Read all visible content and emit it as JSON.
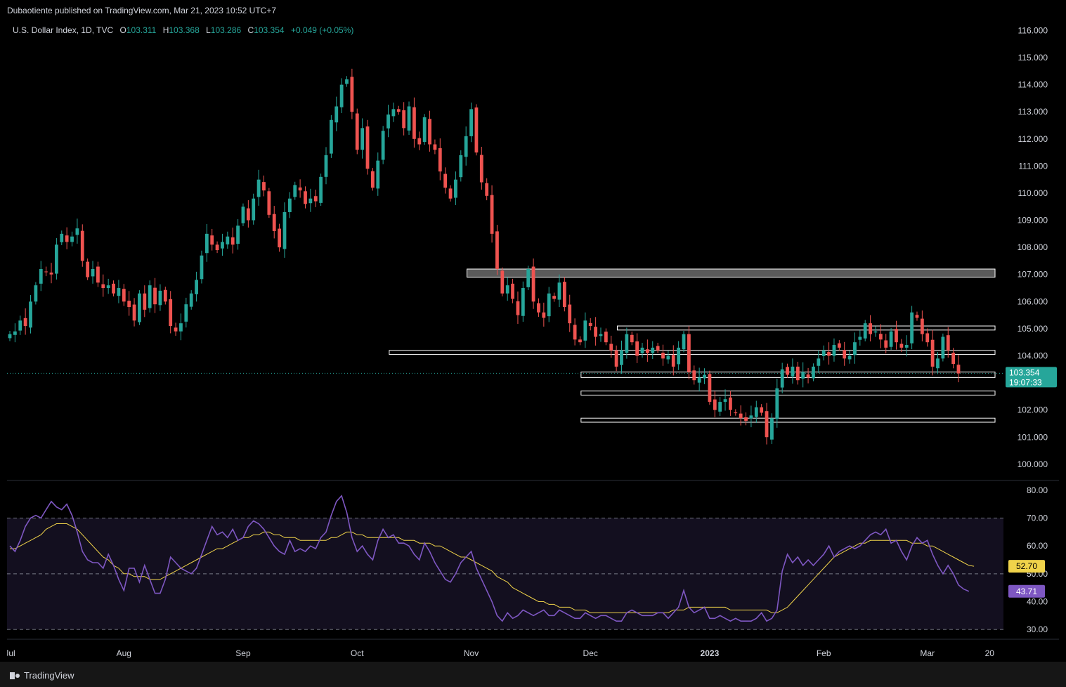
{
  "header": {
    "published": "Dubaotiente published on TradingView.com, Mar 21, 2023 10:52 UTC+7"
  },
  "legend": {
    "symbol": "U.S. Dollar Index, 1D, TVC",
    "o_label": "O",
    "o": "103.311",
    "h_label": "H",
    "h": "103.368",
    "l_label": "L",
    "l": "103.286",
    "c_label": "C",
    "c": "103.354",
    "change": "+0.049 (+0.05%)"
  },
  "price_tag": {
    "price": "103.354",
    "countdown": "19:07:33"
  },
  "rsi_tags": {
    "ma": "52.70",
    "rsi": "43.71"
  },
  "footer": {
    "brand": "TradingView"
  },
  "colors": {
    "up": "#26a69a",
    "down": "#ef5350",
    "rsi_line": "#7e57c2",
    "rsi_ma": "#f0d34a",
    "rsi_band": "#130f1f",
    "zone_fill": "#787878",
    "price_tag": "#26a69a"
  },
  "chart_data": [
    {
      "type": "candlestick",
      "title": "",
      "x_ticks": [
        "Jul",
        "Aug",
        "Sep",
        "Oct",
        "Nov",
        "Dec",
        "2023",
        "Feb",
        "Mar",
        "20"
      ],
      "x_tick_index": [
        0,
        22,
        45,
        67,
        89,
        112,
        135,
        157,
        177,
        189
      ],
      "y_ticks": [
        "116.000",
        "115.000",
        "114.000",
        "113.000",
        "112.000",
        "111.000",
        "110.000",
        "109.000",
        "108.000",
        "107.000",
        "106.000",
        "105.000",
        "104.000",
        "103.000",
        "102.000",
        "101.000",
        "100.000"
      ],
      "ylim": [
        99.4,
        116.4
      ],
      "last_price": 103.354,
      "closes": [
        104.8,
        104.9,
        105.3,
        105.1,
        106.0,
        106.6,
        107.2,
        107.1,
        107.0,
        108.1,
        108.5,
        108.2,
        108.4,
        108.7,
        107.5,
        106.9,
        107.2,
        106.7,
        106.5,
        106.6,
        106.3,
        106.5,
        106.0,
        105.8,
        105.3,
        106.3,
        105.7,
        106.6,
        105.9,
        106.4,
        106.0,
        105.1,
        104.9,
        105.2,
        105.9,
        106.3,
        106.8,
        107.7,
        108.5,
        108.1,
        107.9,
        108.2,
        108.4,
        108.1,
        108.8,
        109.5,
        109.0,
        109.8,
        110.5,
        110.1,
        109.2,
        108.6,
        108.0,
        109.3,
        109.8,
        110.3,
        110.1,
        109.6,
        109.8,
        109.7,
        110.6,
        111.4,
        112.7,
        113.2,
        114.0,
        114.2,
        113.0,
        111.6,
        112.4,
        110.9,
        110.2,
        111.2,
        112.3,
        112.9,
        113.1,
        113.0,
        112.4,
        113.2,
        112.0,
        111.8,
        112.8,
        111.8,
        111.6,
        110.8,
        110.2,
        109.8,
        110.5,
        111.4,
        112.1,
        113.1,
        111.5,
        110.4,
        109.9,
        108.5,
        107.2,
        106.3,
        106.6,
        106.1,
        105.5,
        106.5,
        107.2,
        106.0,
        105.6,
        105.4,
        106.3,
        106.1,
        106.7,
        105.8,
        105.2,
        104.6,
        104.5,
        105.3,
        105.1,
        104.7,
        104.8,
        104.5,
        104.2,
        103.6,
        104.2,
        104.8,
        104.5,
        104.0,
        104.3,
        104.1,
        104.3,
        104.2,
        103.9,
        104.0,
        103.6,
        104.3,
        104.8,
        103.4,
        103.1,
        103.2,
        103.3,
        102.3,
        102.0,
        102.3,
        102.4,
        102.0,
        101.9,
        101.7,
        101.6,
        101.8,
        102.1,
        101.9,
        101.0,
        101.7,
        102.8,
        103.5,
        103.3,
        103.6,
        103.1,
        103.4,
        103.2,
        103.6,
        103.9,
        104.2,
        104.0,
        104.4,
        104.3,
        103.9,
        104.0,
        104.5,
        104.7,
        105.2,
        104.8,
        104.9,
        104.6,
        104.3,
        104.9,
        104.5,
        104.3,
        104.4,
        105.6,
        105.4,
        104.8,
        104.5,
        103.6,
        103.9,
        104.7,
        104.2,
        103.7,
        103.35
      ],
      "zones": [
        {
          "label": "resistance-zone",
          "low": 106.9,
          "high": 107.2,
          "filled": true
        },
        {
          "label": "zone-105",
          "low": 104.95,
          "high": 105.1,
          "filled": false
        },
        {
          "label": "zone-104",
          "low": 104.05,
          "high": 104.2,
          "filled": false
        },
        {
          "label": "zone-103",
          "low": 103.2,
          "high": 103.4,
          "filled": false
        },
        {
          "label": "zone-102-6",
          "low": 102.55,
          "high": 102.7,
          "filled": false
        },
        {
          "label": "zone-101-6",
          "low": 101.55,
          "high": 101.7,
          "filled": false
        }
      ]
    },
    {
      "type": "line",
      "title": "",
      "y_ticks": [
        "80.00",
        "70.00",
        "60.00",
        "50.00",
        "40.00",
        "30.00"
      ],
      "ylim": [
        27,
        83
      ],
      "band": [
        30,
        70
      ],
      "midline": 50,
      "series": [
        {
          "values": [
            60,
            58,
            62,
            67,
            70,
            71,
            70,
            73,
            76,
            74,
            73,
            75,
            71,
            65,
            58,
            55,
            54,
            54,
            52,
            57,
            53,
            48,
            44,
            52,
            52,
            47,
            53,
            48,
            43,
            43,
            48,
            56,
            54,
            52,
            51,
            50,
            52,
            57,
            62,
            67,
            64,
            65,
            63,
            66,
            62,
            63,
            67,
            69,
            68,
            66,
            63,
            60,
            58,
            57,
            62,
            58,
            59,
            58,
            60,
            59,
            63,
            65,
            71,
            76,
            78,
            72,
            63,
            58,
            60,
            57,
            55,
            62,
            66,
            63,
            64,
            61,
            61,
            60,
            57,
            55,
            61,
            58,
            54,
            51,
            48,
            47,
            50,
            54,
            56,
            58,
            52,
            48,
            44,
            40,
            35,
            33,
            36,
            34,
            35,
            37,
            36,
            35,
            36,
            37,
            35,
            35,
            37,
            36,
            35,
            34,
            34,
            36,
            35,
            34,
            35,
            35,
            34,
            33,
            33,
            36,
            37,
            36,
            35,
            35,
            35,
            36,
            36,
            34,
            36,
            38,
            44,
            38,
            36,
            37,
            38,
            34,
            34,
            35,
            34,
            33,
            34,
            33,
            33,
            33,
            34,
            36,
            33,
            34,
            37,
            51,
            57,
            54,
            56,
            53,
            55,
            53,
            55,
            57,
            60,
            56,
            58,
            59,
            60,
            59,
            60,
            62,
            64,
            65,
            64,
            66,
            61,
            62,
            58,
            55,
            60,
            63,
            61,
            62,
            57,
            53,
            50,
            53,
            50,
            46,
            44.5,
            43.71
          ]
        },
        {
          "values": [
            59,
            59,
            60,
            61,
            62,
            63,
            64,
            66,
            67,
            68,
            68,
            68,
            67,
            66,
            64,
            62,
            60,
            58,
            56,
            55,
            53,
            52,
            50,
            50,
            49,
            49,
            49,
            48,
            48,
            48,
            49,
            50,
            51,
            52,
            53,
            54,
            55,
            56,
            57,
            58,
            59,
            59,
            60,
            61,
            62,
            63,
            63,
            64,
            64,
            65,
            65,
            64,
            64,
            63,
            63,
            63,
            62,
            62,
            62,
            62,
            62,
            62,
            63,
            63,
            64,
            65,
            65,
            64,
            64,
            63,
            63,
            63,
            63,
            63,
            63,
            63,
            62,
            62,
            62,
            61,
            61,
            61,
            60,
            60,
            59,
            58,
            57,
            56,
            56,
            55,
            54,
            53,
            52,
            51,
            49,
            48,
            47,
            45,
            44,
            43,
            42,
            41,
            40,
            40,
            39,
            39,
            38,
            38,
            38,
            37,
            37,
            37,
            36,
            36,
            36,
            36,
            36,
            36,
            36,
            36,
            36,
            36,
            36,
            36,
            36,
            36,
            36,
            36,
            37,
            37,
            37,
            38,
            38,
            38,
            38,
            38,
            38,
            38,
            38,
            37,
            37,
            37,
            37,
            37,
            37,
            37,
            37,
            36,
            36,
            37,
            38,
            40,
            42,
            44,
            46,
            48,
            50,
            52,
            54,
            56,
            57,
            58,
            59,
            60,
            61,
            61,
            62,
            62,
            62,
            62,
            62,
            62,
            62,
            62,
            61,
            61,
            61,
            60,
            60,
            59,
            58,
            57,
            56,
            55,
            54,
            53,
            52.7
          ]
        }
      ]
    }
  ]
}
